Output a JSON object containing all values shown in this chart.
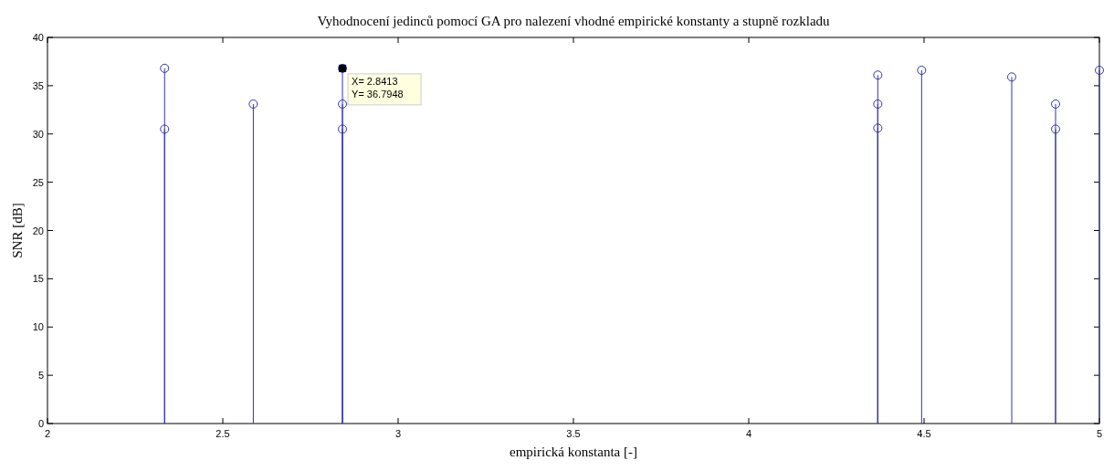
{
  "chart_data": {
    "type": "lollipop",
    "title": "Vyhodnocení jedinců pomocí GA pro nalezení vhodné empirické konstanty a stupně rozkladu",
    "xlabel": "empirická konstanta [-]",
    "ylabel": "SNR [dB]",
    "x": [
      2.334,
      2.334,
      2.587,
      2.8413,
      2.8413,
      2.8413,
      4.368,
      4.368,
      4.368,
      4.493,
      4.75,
      4.875,
      4.875,
      5.0
    ],
    "values": [
      36.8,
      30.5,
      33.1,
      36.7948,
      33.1,
      30.5,
      36.1,
      33.1,
      30.6,
      36.6,
      35.9,
      33.1,
      30.5,
      36.6
    ],
    "color": "#3333aa",
    "marker": "circle",
    "xlim": [
      2,
      5
    ],
    "xticks": [
      2,
      2.5,
      3,
      3.5,
      4,
      4.5,
      5
    ],
    "ylim": [
      0,
      40
    ],
    "yticks": [
      0,
      5,
      10,
      15,
      20,
      25,
      30,
      35,
      40
    ],
    "annotations": [
      {
        "text": "X= 2.8413\nY= 36.7948",
        "x": 2.8413,
        "y": 36.7948
      }
    ]
  }
}
